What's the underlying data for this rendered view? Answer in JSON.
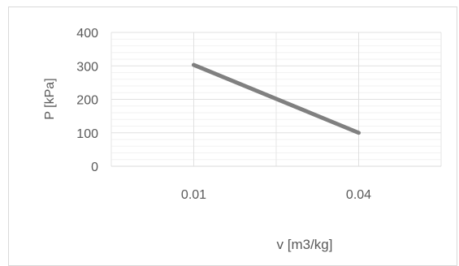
{
  "chart_data": {
    "type": "line",
    "x_ticks": [
      "0.01",
      "0.04"
    ],
    "series": [
      {
        "x": [
          0.01,
          0.04
        ],
        "y": [
          303,
          100
        ],
        "color": "#808080"
      }
    ],
    "xlabel": "v [m3/kg]",
    "ylabel": "P [kPa]",
    "ylim": [
      0,
      400
    ],
    "y_ticks": [
      "0",
      "100",
      "200",
      "300",
      "400"
    ],
    "grid": "major and minor gridlines"
  }
}
